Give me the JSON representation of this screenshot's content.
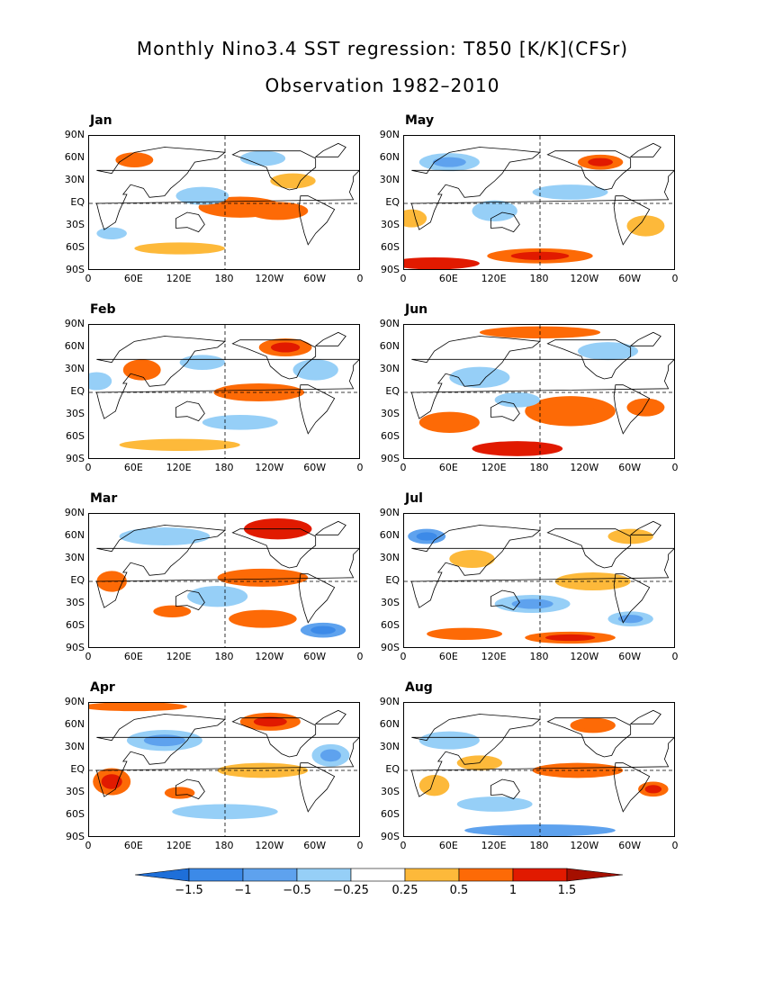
{
  "title": "Monthly Nino3.4 SST regression: T850 [K/K](CFSr)",
  "subtitle": "Observation 1982–2010",
  "chart_data": {
    "type": "heatmap",
    "title": "Monthly Nino3.4 SST regression: T850 [K/K](CFSr)",
    "subtitle": "Observation 1982–2010",
    "panels": [
      "Jan",
      "Feb",
      "Mar",
      "Apr",
      "May",
      "Jun",
      "Jul",
      "Aug"
    ],
    "x_ticks": [
      "0",
      "60E",
      "120E",
      "180",
      "120W",
      "60W",
      "0"
    ],
    "y_ticks": [
      "90N",
      "60N",
      "30N",
      "EQ",
      "30S",
      "60S",
      "90S"
    ],
    "xlim": [
      0,
      360
    ],
    "ylim": [
      -90,
      90
    ],
    "colorbar": {
      "labels": [
        "−1.5",
        "−1",
        "−0.5",
        "−0.25",
        "0.25",
        "0.5",
        "1",
        "1.5"
      ],
      "levels": [
        -1.5,
        -1,
        -0.5,
        -0.25,
        0.25,
        0.5,
        1,
        1.5
      ],
      "colors": [
        "#1e6fd9",
        "#3c8ae8",
        "#5ea2ee",
        "#96cff7",
        "#ffffff",
        "#fdb93a",
        "#fd6a06",
        "#e11a00",
        "#a50f00"
      ]
    },
    "patterns": {
      "Jan": [
        {
          "lon": 200,
          "lat": -5,
          "rx": 55,
          "ry": 14,
          "v": 0.6
        },
        {
          "lon": 250,
          "lat": -10,
          "rx": 40,
          "ry": 12,
          "v": 0.5
        },
        {
          "lon": 60,
          "lat": 58,
          "rx": 25,
          "ry": 10,
          "v": 0.6
        },
        {
          "lon": 150,
          "lat": 10,
          "rx": 35,
          "ry": 12,
          "v": -0.4
        },
        {
          "lon": 270,
          "lat": 30,
          "rx": 30,
          "ry": 10,
          "v": 0.4
        },
        {
          "lon": 230,
          "lat": 60,
          "rx": 30,
          "ry": 10,
          "v": -0.4
        },
        {
          "lon": 120,
          "lat": -60,
          "rx": 60,
          "ry": 8,
          "v": 0.3
        },
        {
          "lon": 30,
          "lat": -40,
          "rx": 20,
          "ry": 8,
          "v": -0.35
        }
      ],
      "Feb": [
        {
          "lon": 225,
          "lat": 0,
          "rx": 60,
          "ry": 12,
          "v": 0.6
        },
        {
          "lon": 260,
          "lat": 60,
          "rx": 35,
          "ry": 12,
          "v": 0.9
        },
        {
          "lon": 70,
          "lat": 30,
          "rx": 25,
          "ry": 14,
          "v": 0.5
        },
        {
          "lon": 10,
          "lat": 15,
          "rx": 20,
          "ry": 12,
          "v": -0.4
        },
        {
          "lon": 150,
          "lat": 40,
          "rx": 30,
          "ry": 10,
          "v": -0.4
        },
        {
          "lon": 200,
          "lat": -40,
          "rx": 50,
          "ry": 10,
          "v": -0.4
        },
        {
          "lon": 300,
          "lat": 30,
          "rx": 30,
          "ry": 14,
          "v": -0.4
        },
        {
          "lon": 120,
          "lat": -70,
          "rx": 80,
          "ry": 8,
          "v": 0.3
        }
      ],
      "Mar": [
        {
          "lon": 250,
          "lat": 70,
          "rx": 45,
          "ry": 14,
          "v": 1.1
        },
        {
          "lon": 230,
          "lat": 5,
          "rx": 60,
          "ry": 12,
          "v": 0.5
        },
        {
          "lon": 230,
          "lat": -50,
          "rx": 45,
          "ry": 12,
          "v": 0.6
        },
        {
          "lon": 310,
          "lat": -65,
          "rx": 30,
          "ry": 10,
          "v": -0.8
        },
        {
          "lon": 100,
          "lat": 60,
          "rx": 60,
          "ry": 12,
          "v": -0.4
        },
        {
          "lon": 170,
          "lat": -20,
          "rx": 40,
          "ry": 14,
          "v": -0.4
        },
        {
          "lon": 30,
          "lat": 0,
          "rx": 20,
          "ry": 14,
          "v": 0.5
        },
        {
          "lon": 110,
          "lat": -40,
          "rx": 25,
          "ry": 8,
          "v": 0.5
        }
      ],
      "Apr": [
        {
          "lon": 30,
          "lat": -15,
          "rx": 25,
          "ry": 18,
          "v": 0.7
        },
        {
          "lon": 240,
          "lat": 65,
          "rx": 40,
          "ry": 12,
          "v": 0.8
        },
        {
          "lon": 230,
          "lat": 0,
          "rx": 60,
          "ry": 10,
          "v": 0.4
        },
        {
          "lon": 100,
          "lat": 40,
          "rx": 50,
          "ry": 14,
          "v": -0.5
        },
        {
          "lon": 320,
          "lat": 20,
          "rx": 25,
          "ry": 15,
          "v": -0.5
        },
        {
          "lon": 180,
          "lat": -55,
          "rx": 70,
          "ry": 10,
          "v": -0.4
        },
        {
          "lon": 120,
          "lat": -30,
          "rx": 20,
          "ry": 8,
          "v": 0.5
        },
        {
          "lon": 60,
          "lat": 85,
          "rx": 70,
          "ry": 6,
          "v": 0.5
        }
      ],
      "May": [
        {
          "lon": 40,
          "lat": -80,
          "rx": 60,
          "ry": 8,
          "v": 1.1
        },
        {
          "lon": 180,
          "lat": -70,
          "rx": 70,
          "ry": 10,
          "v": 0.7
        },
        {
          "lon": 260,
          "lat": 55,
          "rx": 30,
          "ry": 10,
          "v": 0.9
        },
        {
          "lon": 220,
          "lat": 15,
          "rx": 50,
          "ry": 10,
          "v": -0.4
        },
        {
          "lon": 60,
          "lat": 55,
          "rx": 40,
          "ry": 12,
          "v": -0.5
        },
        {
          "lon": 120,
          "lat": -10,
          "rx": 30,
          "ry": 14,
          "v": -0.4
        },
        {
          "lon": 320,
          "lat": -30,
          "rx": 25,
          "ry": 14,
          "v": 0.4
        },
        {
          "lon": 10,
          "lat": -20,
          "rx": 20,
          "ry": 12,
          "v": 0.4
        }
      ],
      "Jun": [
        {
          "lon": 150,
          "lat": -75,
          "rx": 60,
          "ry": 10,
          "v": 1.0
        },
        {
          "lon": 220,
          "lat": -25,
          "rx": 60,
          "ry": 20,
          "v": 0.5
        },
        {
          "lon": 60,
          "lat": -40,
          "rx": 40,
          "ry": 14,
          "v": 0.5
        },
        {
          "lon": 180,
          "lat": 80,
          "rx": 80,
          "ry": 8,
          "v": 0.5
        },
        {
          "lon": 100,
          "lat": 20,
          "rx": 40,
          "ry": 14,
          "v": -0.4
        },
        {
          "lon": 270,
          "lat": 55,
          "rx": 40,
          "ry": 12,
          "v": -0.4
        },
        {
          "lon": 320,
          "lat": -20,
          "rx": 25,
          "ry": 12,
          "v": 0.6
        },
        {
          "lon": 150,
          "lat": -10,
          "rx": 30,
          "ry": 10,
          "v": -0.4
        }
      ],
      "Jul": [
        {
          "lon": 220,
          "lat": -75,
          "rx": 60,
          "ry": 8,
          "v": 0.9
        },
        {
          "lon": 80,
          "lat": -70,
          "rx": 50,
          "ry": 8,
          "v": 0.6
        },
        {
          "lon": 30,
          "lat": 60,
          "rx": 25,
          "ry": 10,
          "v": -0.9
        },
        {
          "lon": 250,
          "lat": 0,
          "rx": 50,
          "ry": 12,
          "v": 0.4
        },
        {
          "lon": 170,
          "lat": -30,
          "rx": 50,
          "ry": 12,
          "v": -0.5
        },
        {
          "lon": 90,
          "lat": 30,
          "rx": 30,
          "ry": 12,
          "v": 0.4
        },
        {
          "lon": 300,
          "lat": -50,
          "rx": 30,
          "ry": 10,
          "v": -0.5
        },
        {
          "lon": 300,
          "lat": 60,
          "rx": 30,
          "ry": 10,
          "v": 0.4
        }
      ],
      "Aug": [
        {
          "lon": 180,
          "lat": -80,
          "rx": 100,
          "ry": 8,
          "v": -0.6
        },
        {
          "lon": 230,
          "lat": 0,
          "rx": 60,
          "ry": 10,
          "v": 0.5
        },
        {
          "lon": 330,
          "lat": -25,
          "rx": 20,
          "ry": 10,
          "v": 0.8
        },
        {
          "lon": 250,
          "lat": 60,
          "rx": 30,
          "ry": 10,
          "v": 0.5
        },
        {
          "lon": 60,
          "lat": 40,
          "rx": 40,
          "ry": 12,
          "v": -0.4
        },
        {
          "lon": 120,
          "lat": -45,
          "rx": 50,
          "ry": 10,
          "v": -0.4
        },
        {
          "lon": 40,
          "lat": -20,
          "rx": 20,
          "ry": 14,
          "v": 0.4
        },
        {
          "lon": 100,
          "lat": 10,
          "rx": 30,
          "ry": 10,
          "v": 0.4
        }
      ]
    }
  }
}
